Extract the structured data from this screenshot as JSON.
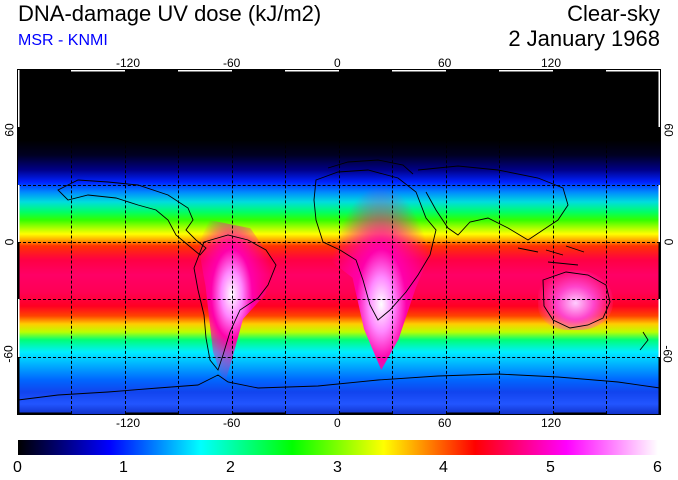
{
  "header": {
    "title": "DNA-damage UV dose (kJ/m2)",
    "subtitle": "MSR - KNMI",
    "condition": "Clear-sky",
    "date": "2 January 1968",
    "subtitle_color": "#0000ff"
  },
  "map": {
    "projection": "equirectangular",
    "lon_range": [
      -180,
      180
    ],
    "lat_range": [
      -90,
      90
    ],
    "grid": "dashed, every 30 degrees",
    "lon_labels": [
      "-120",
      "-60",
      "0",
      "60",
      "120"
    ],
    "lat_labels": [
      "60",
      "0",
      "-60"
    ]
  },
  "colorbar": {
    "labels": [
      "0",
      "1",
      "2",
      "3",
      "4",
      "5",
      "6"
    ],
    "min": 0,
    "max": 6,
    "stops": [
      "#000000",
      "#0000ff",
      "#00ffff",
      "#00ff00",
      "#ffff00",
      "#ff0000",
      "#ff00ff",
      "#ffffff"
    ]
  }
}
